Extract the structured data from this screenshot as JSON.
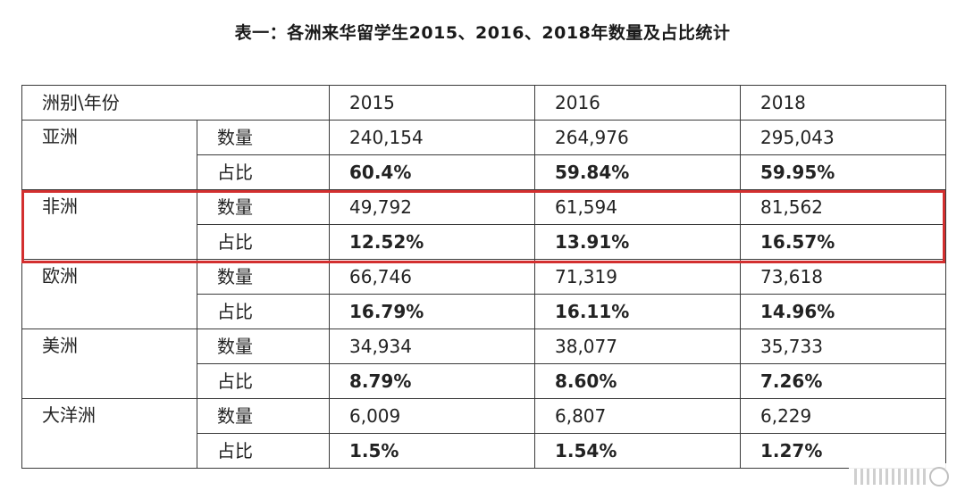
{
  "title": "表一：各洲来华留学生2015、2016、2018年数量及占比统计",
  "table": {
    "header": {
      "corner": "洲别\\年份",
      "years": [
        "2015",
        "2016",
        "2018"
      ]
    },
    "rows": [
      {
        "continent": "亚洲",
        "count_label": "数量",
        "counts": [
          "240,154",
          "264,976",
          "295,043"
        ],
        "share_label": "占比",
        "shares": [
          "60.4%",
          "59.84%",
          "59.95%"
        ]
      },
      {
        "continent": "非洲",
        "count_label": "数量",
        "counts": [
          "49,792",
          "61,594",
          "81,562"
        ],
        "share_label": "占比",
        "shares": [
          "12.52%",
          "13.91%",
          "16.57%"
        ]
      },
      {
        "continent": "欧洲",
        "count_label": "数量",
        "counts": [
          "66,746",
          "71,319",
          "73,618"
        ],
        "share_label": "占比",
        "shares": [
          "16.79%",
          "16.11%",
          "14.96%"
        ]
      },
      {
        "continent": "美洲",
        "count_label": "数量",
        "counts": [
          "34,934",
          "38,077",
          "35,733"
        ],
        "share_label": "占比",
        "shares": [
          "8.79%",
          "8.60%",
          "7.26%"
        ]
      },
      {
        "continent": "大洋洲",
        "count_label": "数量",
        "counts": [
          "6,009",
          "6,807",
          "6,229"
        ],
        "share_label": "占比",
        "shares": [
          "1.5%",
          "1.54%",
          "1.27%"
        ]
      }
    ]
  },
  "highlight": {
    "row": "非洲",
    "color": "#d32f2f"
  },
  "watermark": {
    "icon": "watermark-logo-icon"
  }
}
